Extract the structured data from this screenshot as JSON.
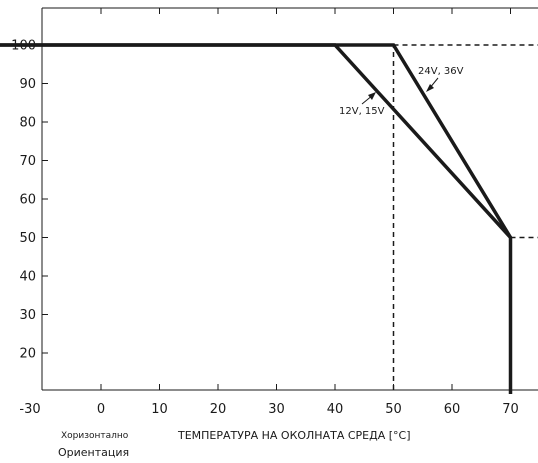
{
  "chart_data": {
    "type": "line",
    "xlabel": "ТЕМПЕРАТУРА НА ОКОЛНАТА СРЕДА [°C]",
    "ylabel": "",
    "xlim": [
      -30,
      75
    ],
    "ylim": [
      10,
      110
    ],
    "xticks": [
      -30,
      0,
      10,
      20,
      30,
      40,
      50,
      60,
      70
    ],
    "yticks": [
      100,
      90,
      80,
      70,
      60,
      50,
      40,
      30,
      20
    ],
    "grid": false,
    "series": [
      {
        "name": "24V, 36V",
        "x": [
          -30,
          50,
          70,
          70
        ],
        "y": [
          100,
          100,
          50,
          10
        ]
      },
      {
        "name": "12V, 15V",
        "x": [
          -30,
          40,
          70
        ],
        "y": [
          100,
          100,
          50
        ]
      }
    ],
    "reference_lines": [
      {
        "x": [
          50,
          50
        ],
        "y": [
          10,
          100
        ]
      },
      {
        "x": [
          50,
          75
        ],
        "y": [
          100,
          100
        ]
      },
      {
        "x": [
          70,
          75
        ],
        "y": [
          50,
          50
        ]
      }
    ],
    "annotations": {
      "series_a_label": "24V, 36V",
      "series_b_label": "12V, 15V"
    },
    "notes": [
      "Хоризонтално",
      "Ориентация"
    ]
  }
}
